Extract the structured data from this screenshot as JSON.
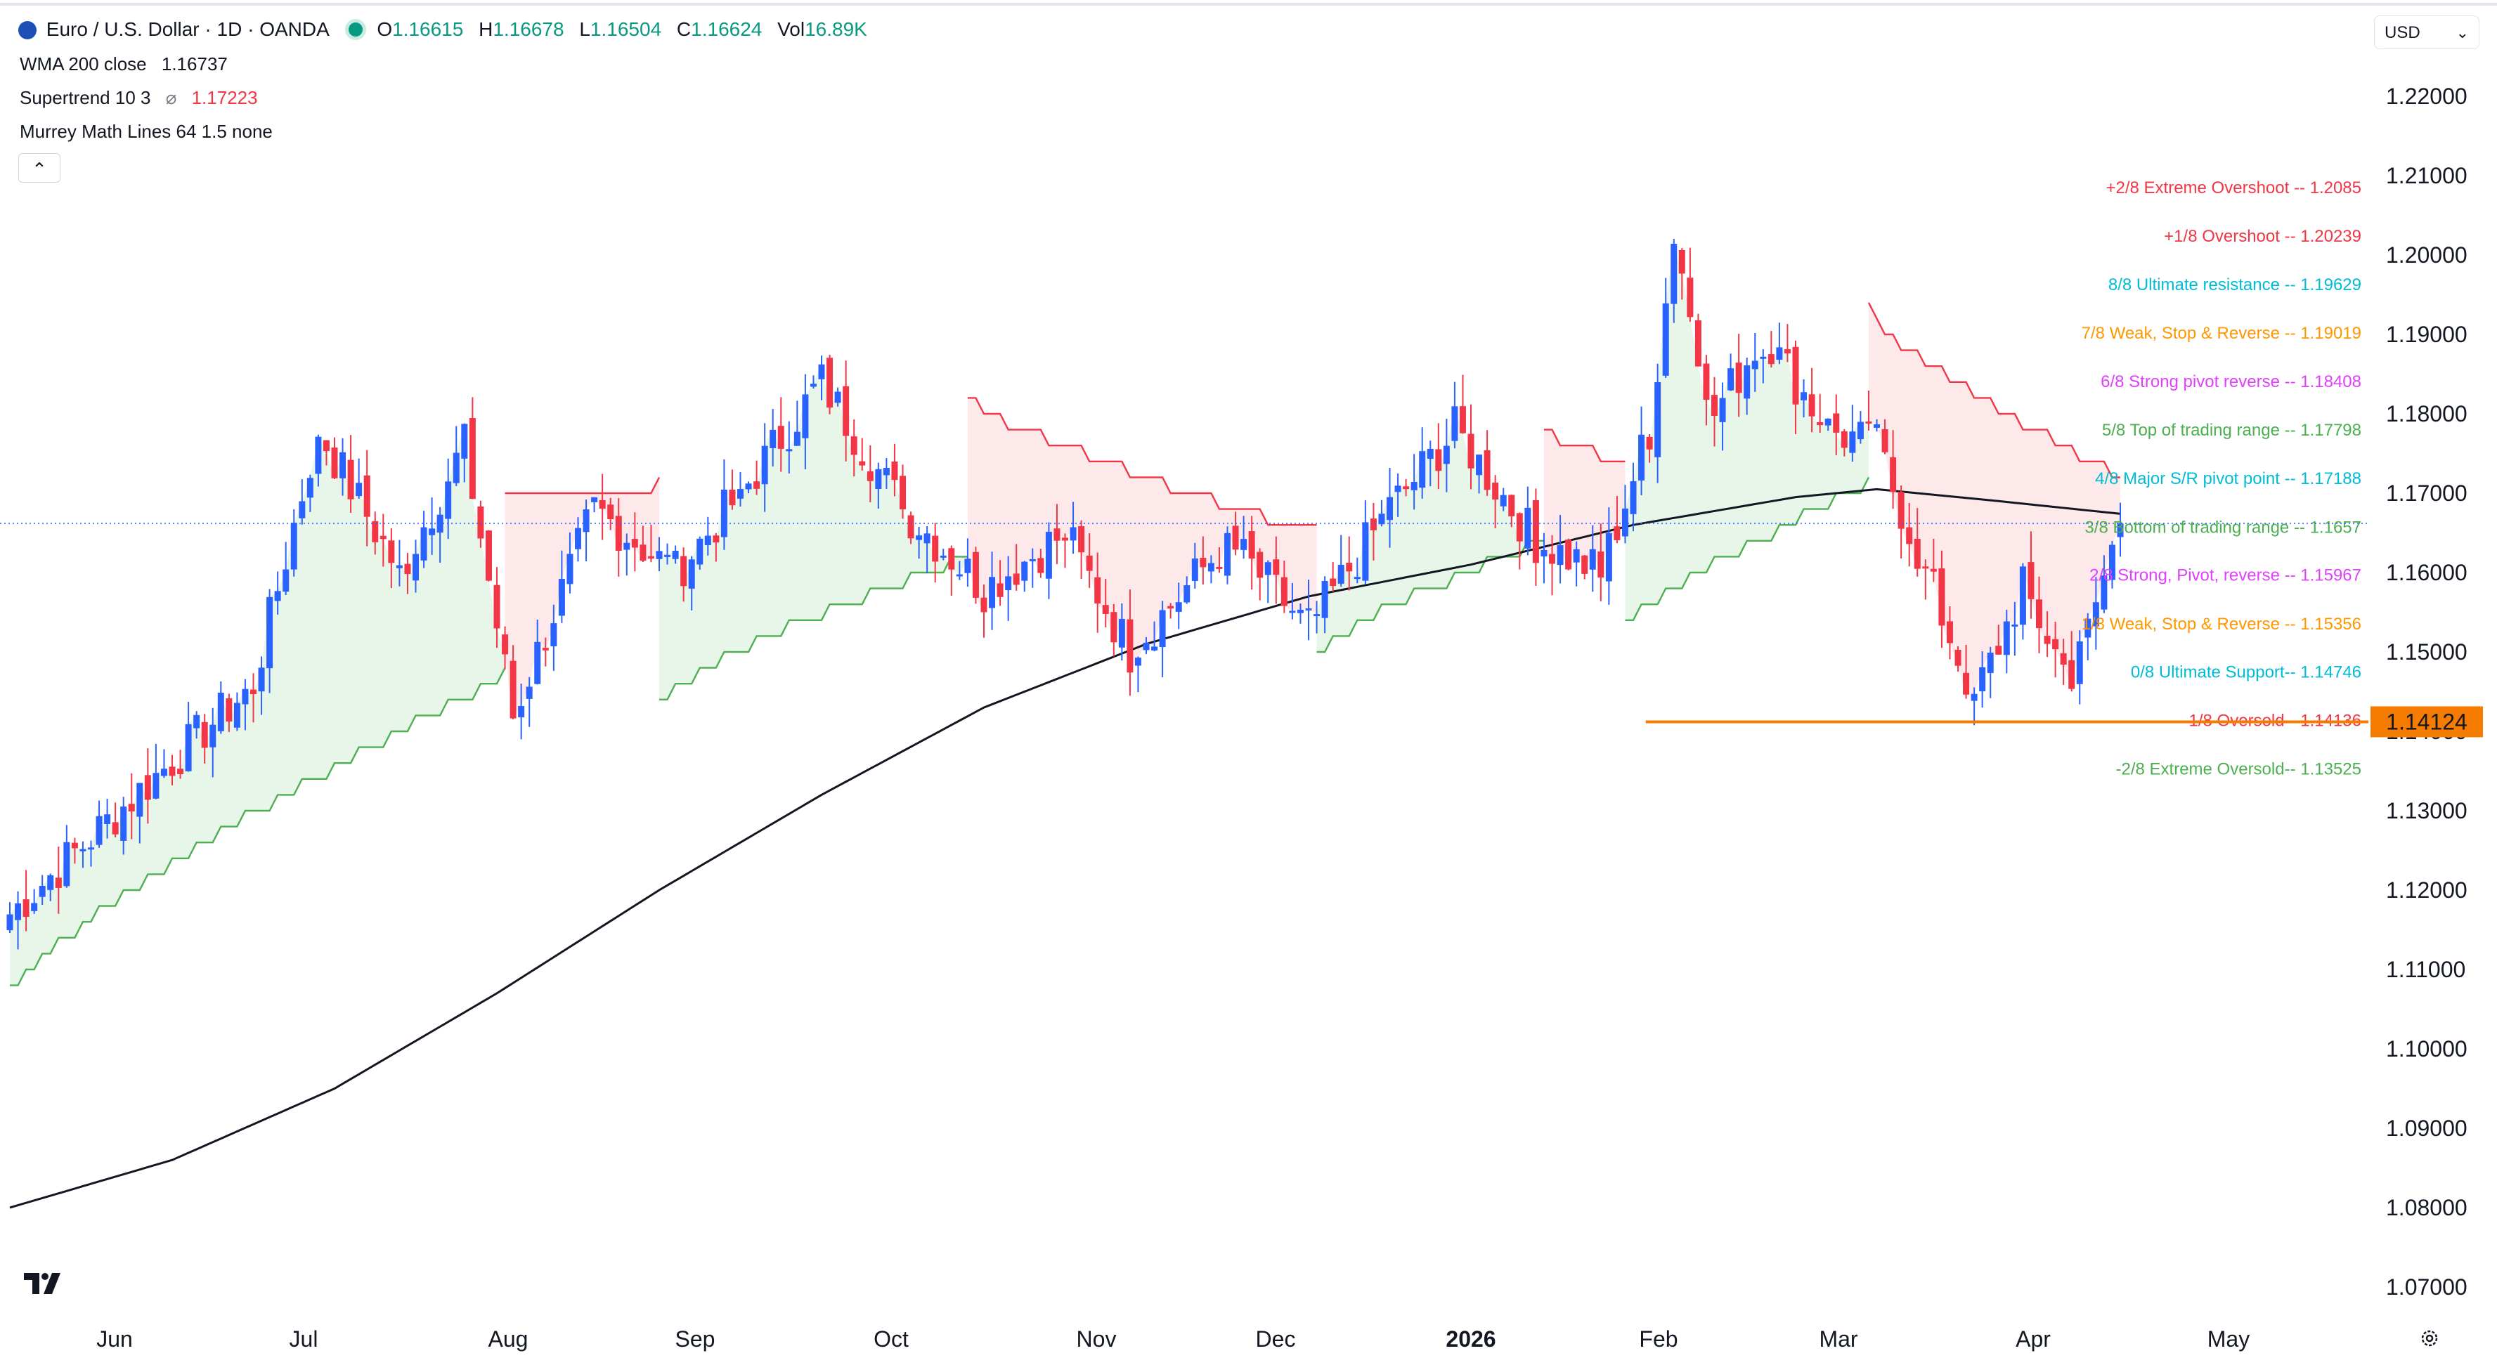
{
  "header": {
    "symbol": "Euro / U.S. Dollar · 1D · OANDA",
    "o_label": "O",
    "o_value": "1.16615",
    "h_label": "H",
    "h_value": "1.16678",
    "l_label": "L",
    "l_value": "1.16504",
    "c_label": "C",
    "c_value": "1.16624",
    "vol_label": "Vol",
    "vol_value": "16.89K",
    "indicator1": "WMA 200 close",
    "indicator1_value": "1.16737",
    "indicator2": "Supertrend 10 3",
    "indicator2_sym": "⌀",
    "indicator2_value": "1.17223",
    "indicator3": "Murrey Math Lines 64 1.5 none",
    "collapse_icon": "chevron-up-icon"
  },
  "currency_selector": {
    "value": "USD"
  },
  "colors": {
    "up": "#2962ff",
    "down": "#f23645",
    "wma": "#131722",
    "st_up": "#4caf50",
    "st_down": "#f23645",
    "st_up_fill": "#e8f5e9",
    "st_down_fill": "#fde8ea",
    "price_line": "#f57c00"
  },
  "chart_data": {
    "type": "candlestick",
    "title": "Euro / U.S. Dollar · 1D · OANDA",
    "yaxis": {
      "ylim": [
        1.06525,
        1.22825
      ],
      "ticks": [
        "1.22000",
        "1.21000",
        "1.20000",
        "1.19000",
        "1.18000",
        "1.17000",
        "1.16000",
        "1.15000",
        "1.14000",
        "1.13000",
        "1.12000",
        "1.11000",
        "1.10000",
        "1.09000",
        "1.08000",
        "1.07000"
      ]
    },
    "xaxis": {
      "ticks": [
        "Jun",
        "Jul",
        "Aug",
        "Sep",
        "Oct",
        "Nov",
        "Dec",
        "2026",
        "Feb",
        "Mar",
        "Apr",
        "May"
      ]
    },
    "current_price": "1.14124",
    "last_close_line": 1.1662,
    "murrey_lines": [
      {
        "label": "+2/8 Extreme Overshoot --  1.2085",
        "value": 1.2085,
        "color": "#f23645"
      },
      {
        "label": "+1/8 Overshoot --  1.20239",
        "value": 1.20239,
        "color": "#f23645"
      },
      {
        "label": "8/8 Ultimate resistance --  1.19629",
        "value": 1.19629,
        "color": "#00bcd4"
      },
      {
        "label": "7/8 Weak, Stop & Reverse --  1.19019",
        "value": 1.19019,
        "color": "#ff9800"
      },
      {
        "label": "6/8 Strong pivot reverse --  1.18408",
        "value": 1.18408,
        "color": "#e040fb"
      },
      {
        "label": "5/8 Top of trading range --  1.17798",
        "value": 1.17798,
        "color": "#4caf50"
      },
      {
        "label": "4/8 Major S/R pivot point --  1.17188",
        "value": 1.17188,
        "color": "#00bcd4"
      },
      {
        "label": "3/8 Bottom of trading range --  1.1657",
        "value": 1.1657,
        "color": "#4caf50"
      },
      {
        "label": "2/8 Strong, Pivot, reverse --  1.15967",
        "value": 1.15967,
        "color": "#e040fb"
      },
      {
        "label": "1/8 Weak, Stop & Reverse --  1.15356",
        "value": 1.15356,
        "color": "#ff9800"
      },
      {
        "label": "0/8 Ultimate Support--  1.14746",
        "value": 1.14746,
        "color": "#00bcd4"
      },
      {
        "label": "-1/8 Oversold--  1.14136",
        "value": 1.14136,
        "color": "#f23645"
      },
      {
        "label": "-2/8 Extreme Oversold--  1.13525",
        "value": 1.13525,
        "color": "#4caf50"
      }
    ],
    "support_line": {
      "value": 1.1412,
      "from_bar": 205,
      "to_bar": 260
    },
    "segments": [
      {
        "bars": [
          0,
          30
        ],
        "o": 1.117,
        "c": 1.146
      },
      {
        "bars": [
          30,
          38
        ],
        "o": 1.146,
        "c": 1.178
      },
      {
        "bars": [
          38,
          48
        ],
        "o": 1.178,
        "c": 1.16
      },
      {
        "bars": [
          48,
          56
        ],
        "o": 1.16,
        "c": 1.176
      },
      {
        "bars": [
          56,
          62
        ],
        "o": 1.176,
        "c": 1.142
      },
      {
        "bars": [
          62,
          72
        ],
        "o": 1.142,
        "c": 1.168
      },
      {
        "bars": [
          72,
          82
        ],
        "o": 1.168,
        "c": 1.16
      },
      {
        "bars": [
          82,
          90
        ],
        "o": 1.16,
        "c": 1.17
      },
      {
        "bars": [
          90,
          100
        ],
        "o": 1.17,
        "c": 1.184
      },
      {
        "bars": [
          100,
          110
        ],
        "o": 1.184,
        "c": 1.168
      },
      {
        "bars": [
          110,
          120
        ],
        "o": 1.168,
        "c": 1.158
      },
      {
        "bars": [
          120,
          130
        ],
        "o": 1.158,
        "c": 1.165
      },
      {
        "bars": [
          130,
          138
        ],
        "o": 1.165,
        "c": 1.15
      },
      {
        "bars": [
          138,
          150
        ],
        "o": 1.15,
        "c": 1.164
      },
      {
        "bars": [
          150,
          160
        ],
        "o": 1.164,
        "c": 1.153
      },
      {
        "bars": [
          160,
          170
        ],
        "o": 1.153,
        "c": 1.168
      },
      {
        "bars": [
          170,
          178
        ],
        "o": 1.168,
        "c": 1.178
      },
      {
        "bars": [
          178,
          188
        ],
        "o": 1.178,
        "c": 1.164
      },
      {
        "bars": [
          188,
          196
        ],
        "o": 1.164,
        "c": 1.16
      },
      {
        "bars": [
          196,
          202
        ],
        "o": 1.16,
        "c": 1.178
      },
      {
        "bars": [
          202,
          205
        ],
        "o": 1.178,
        "c": 1.202
      },
      {
        "bars": [
          205,
          210
        ],
        "o": 1.202,
        "c": 1.18
      },
      {
        "bars": [
          210,
          216
        ],
        "o": 1.18,
        "c": 1.19
      },
      {
        "bars": [
          216,
          224
        ],
        "o": 1.19,
        "c": 1.178
      },
      {
        "bars": [
          224,
          230
        ],
        "o": 1.178,
        "c": 1.176
      },
      {
        "bars": [
          230,
          236
        ],
        "o": 1.176,
        "c": 1.16
      },
      {
        "bars": [
          236,
          242
        ],
        "o": 1.16,
        "c": 1.144
      },
      {
        "bars": [
          242,
          248
        ],
        "o": 1.144,
        "c": 1.158
      },
      {
        "bars": [
          248,
          254
        ],
        "o": 1.158,
        "c": 1.146
      },
      {
        "bars": [
          254,
          260
        ],
        "o": 1.146,
        "c": 1.1662
      }
    ],
    "wma": [
      [
        0,
        1.08
      ],
      [
        20,
        1.086
      ],
      [
        40,
        1.095
      ],
      [
        60,
        1.107
      ],
      [
        80,
        1.12
      ],
      [
        100,
        1.132
      ],
      [
        120,
        1.143
      ],
      [
        140,
        1.151
      ],
      [
        160,
        1.157
      ],
      [
        180,
        1.161
      ],
      [
        200,
        1.166
      ],
      [
        220,
        1.1695
      ],
      [
        230,
        1.1705
      ],
      [
        245,
        1.169
      ],
      [
        260,
        1.1674
      ]
    ],
    "supertrend": [
      {
        "dir": "up",
        "from": 0,
        "to": 61,
        "start": 1.107,
        "end": 1.147
      },
      {
        "dir": "down",
        "from": 61,
        "to": 80,
        "start": 1.17,
        "end": 1.171
      },
      {
        "dir": "up",
        "from": 80,
        "to": 118,
        "start": 1.144,
        "end": 1.162
      },
      {
        "dir": "down",
        "from": 118,
        "to": 161,
        "start": 1.182,
        "end": 1.165
      },
      {
        "dir": "up",
        "from": 161,
        "to": 189,
        "start": 1.15,
        "end": 1.164
      },
      {
        "dir": "down",
        "from": 189,
        "to": 199,
        "start": 1.178,
        "end": 1.174
      },
      {
        "dir": "up",
        "from": 199,
        "to": 229,
        "start": 1.153,
        "end": 1.171
      },
      {
        "dir": "down",
        "from": 229,
        "to": 260,
        "start": 1.193,
        "end": 1.172
      }
    ]
  }
}
